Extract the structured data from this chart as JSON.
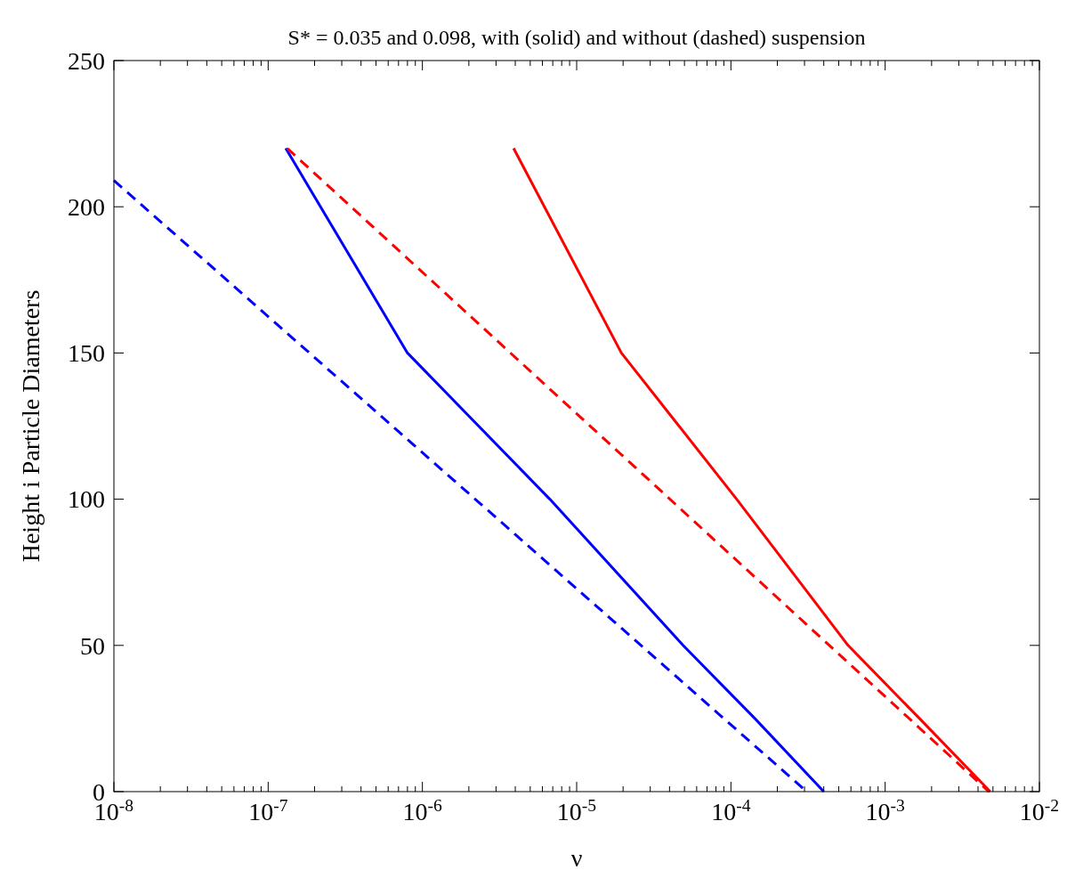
{
  "chart_data": {
    "type": "line",
    "title": "S* = 0.035 and 0.098, with (solid) and without (dashed) suspension",
    "xlabel": "ν",
    "ylabel": "Height i Particle Diameters",
    "log": "x",
    "grid": false,
    "marker": "none",
    "xlim": [
      1e-08,
      0.01
    ],
    "ylim": [
      0,
      250
    ],
    "xticks": [
      {
        "value": 1e-08,
        "label": "10$^{-8}$"
      },
      {
        "value": 1e-07,
        "label": "10$^{-7}$"
      },
      {
        "value": 1e-06,
        "label": "10$^{-6}$"
      },
      {
        "value": 1e-05,
        "label": "10$^{-5}$"
      },
      {
        "value": 0.0001,
        "label": "10$^{-4}$"
      },
      {
        "value": 0.001,
        "label": "10$^{-3}$"
      },
      {
        "value": 0.01,
        "label": "10$^{-2}$"
      }
    ],
    "yticks": [
      0,
      50,
      100,
      150,
      200,
      250
    ],
    "series": [
      {
        "color": "#0000ff",
        "line_style": "dashed",
        "x": [
          1e-08,
          0.00031
        ],
        "values": [
          209,
          0
        ]
      },
      {
        "color": "#0000ff",
        "line_style": "solid",
        "x": [
          1.3e-07,
          8e-07,
          6.7e-06,
          4.9e-05,
          0.000143,
          0.0004
        ],
        "values": [
          220,
          150,
          100,
          50,
          25,
          0
        ]
      },
      {
        "color": "#ff0000",
        "line_style": "dashed",
        "x": [
          1.33e-07,
          0.0047
        ],
        "values": [
          220,
          0
        ]
      },
      {
        "color": "#ff0000",
        "line_style": "solid",
        "x": [
          3.9e-06,
          1.95e-05,
          0.000109,
          0.000575,
          0.00167,
          0.0048
        ],
        "values": [
          220,
          150,
          100,
          50,
          25,
          0
        ]
      }
    ]
  }
}
